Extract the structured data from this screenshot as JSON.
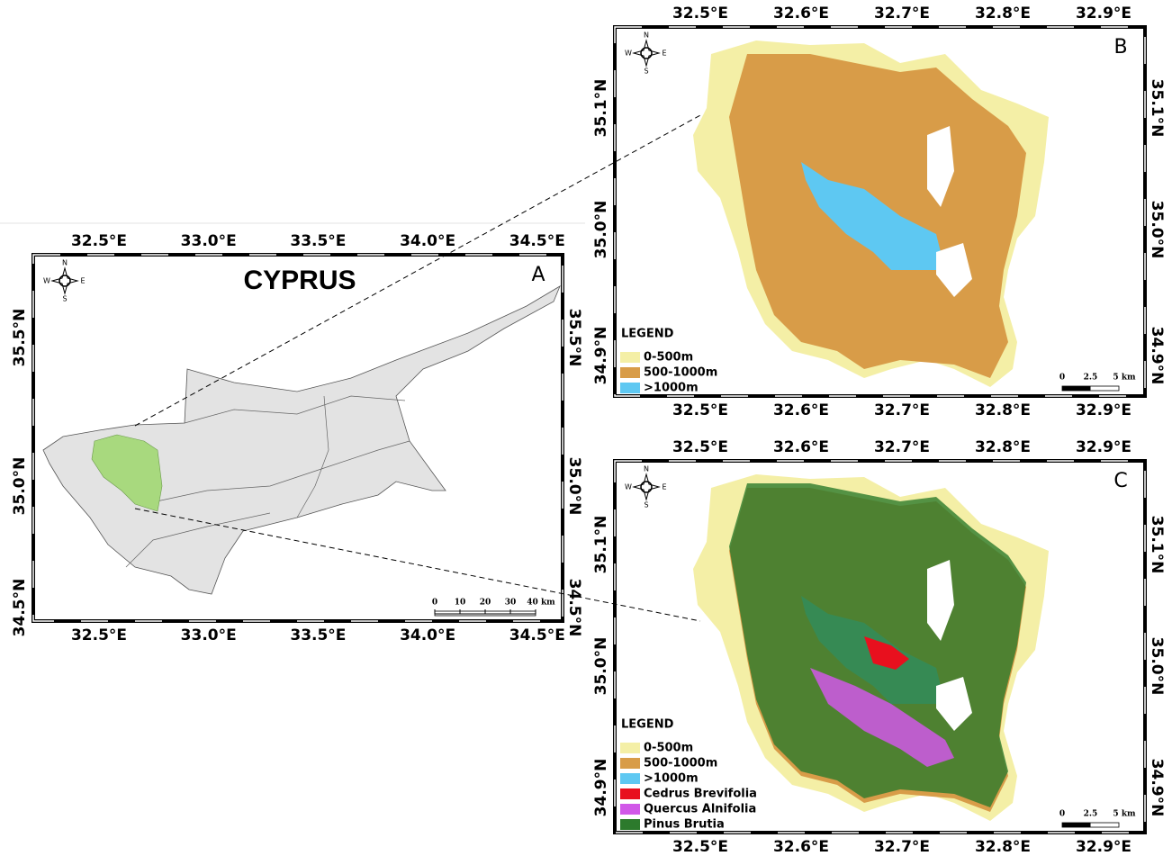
{
  "panels": [
    {
      "letter": "A",
      "title": "CYPRUS",
      "lon_labels": [
        "32.5°E",
        "33.0°E",
        "33.5°E",
        "34.0°E",
        "34.5°E"
      ],
      "lat_labels": [
        "35.5°N",
        "35.0°N",
        "34.5°N"
      ],
      "compass": [
        "N",
        "S",
        "E",
        "W"
      ],
      "scale_labels": [
        "0",
        "10",
        "20",
        "30",
        "40 km"
      ]
    },
    {
      "letter": "B",
      "lon_labels": [
        "32.5°E",
        "32.6°E",
        "32.7°E",
        "32.8°E",
        "32.9°E"
      ],
      "lat_labels": [
        "35.1°N",
        "35.0°N",
        "34.9°N"
      ],
      "compass": [
        "N",
        "S",
        "E",
        "W"
      ],
      "legend_title": "LEGEND",
      "legend": [
        {
          "label": "0-500m",
          "color": "#f4efa6"
        },
        {
          "label": "500-1000m",
          "color": "#d89c48"
        },
        {
          "label": ">1000m",
          "color": "#5ec8f2"
        }
      ],
      "scale_labels": [
        "0",
        "2.5",
        "5 km"
      ]
    },
    {
      "letter": "C",
      "lon_labels": [
        "32.5°E",
        "32.6°E",
        "32.7°E",
        "32.8°E",
        "32.9°E"
      ],
      "lat_labels": [
        "35.1°N",
        "35.0°N",
        "34.9°N"
      ],
      "compass": [
        "N",
        "S",
        "E",
        "W"
      ],
      "legend_title": "LEGEND",
      "legend": [
        {
          "label": "0-500m",
          "color": "#f4efa6"
        },
        {
          "label": "500-1000m",
          "color": "#d89c48"
        },
        {
          "label": ">1000m",
          "color": "#5ec8f2"
        },
        {
          "label": "Cedrus Brevifolia",
          "color": "#e8101e"
        },
        {
          "label": "Quercus Alnifolia",
          "color": "#d158e8"
        },
        {
          "label": "Pinus Brutia",
          "color": "#2c7a2c"
        }
      ],
      "scale_labels": [
        "0",
        "2.5",
        "5 km"
      ]
    }
  ]
}
